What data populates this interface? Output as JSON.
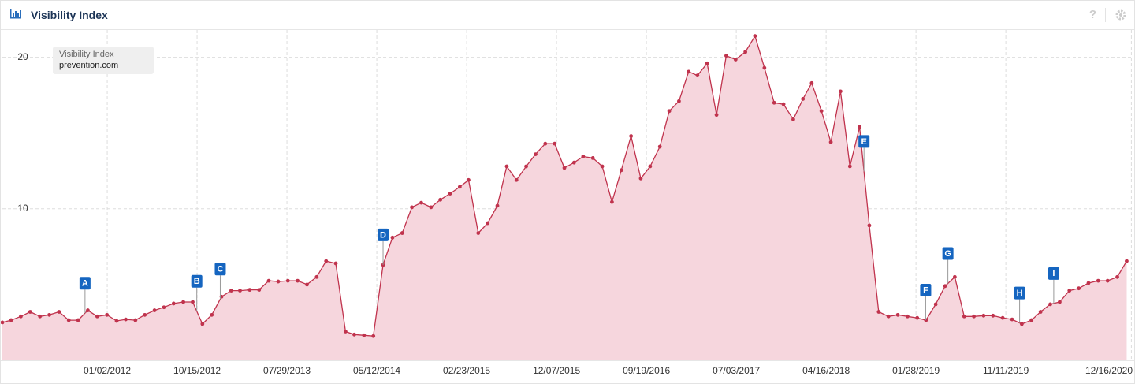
{
  "header": {
    "title": "Visibility Index"
  },
  "chart_data": {
    "type": "line",
    "legend_title": "Visibility Index",
    "series": [
      {
        "name": "prevention.com",
        "color": "#c0334d",
        "fill": "#f6d6dd",
        "x": [
          "02/01/2011",
          "03/01/2011",
          "04/01/2011",
          "05/01/2011",
          "06/01/2011",
          "07/01/2011",
          "08/01/2011",
          "09/01/2011",
          "10/01/2011",
          "11/01/2011",
          "12/01/2011",
          "01/01/2012",
          "02/01/2012",
          "03/01/2012",
          "04/01/2012",
          "05/01/2012",
          "06/01/2012",
          "07/01/2012",
          "08/01/2012",
          "09/01/2012",
          "10/01/2012",
          "11/01/2012",
          "12/01/2012",
          "01/01/2013",
          "02/01/2013",
          "03/01/2013",
          "04/01/2013",
          "05/01/2013",
          "06/01/2013",
          "07/01/2013",
          "08/01/2013",
          "09/01/2013",
          "10/01/2013",
          "11/01/2013",
          "12/01/2013",
          "01/01/2014",
          "02/01/2014",
          "03/01/2014",
          "04/01/2014",
          "05/01/2014",
          "06/01/2014",
          "07/01/2014",
          "08/01/2014",
          "09/01/2014",
          "10/01/2014",
          "11/01/2014",
          "12/01/2014",
          "01/01/2015",
          "02/01/2015",
          "03/01/2015",
          "04/01/2015",
          "05/01/2015",
          "06/01/2015",
          "07/01/2015",
          "08/01/2015",
          "09/01/2015",
          "10/01/2015",
          "11/01/2015",
          "12/01/2015",
          "01/01/2016",
          "02/01/2016",
          "03/01/2016",
          "04/01/2016",
          "05/01/2016",
          "06/01/2016",
          "07/01/2016",
          "08/01/2016",
          "09/01/2016",
          "10/01/2016",
          "11/01/2016",
          "12/01/2016",
          "01/01/2017",
          "02/01/2017",
          "03/01/2017",
          "04/01/2017",
          "05/01/2017",
          "06/01/2017",
          "07/01/2017",
          "08/01/2017",
          "09/01/2017",
          "10/01/2017",
          "11/01/2017",
          "12/01/2017",
          "01/01/2018",
          "02/01/2018",
          "03/01/2018",
          "04/01/2018",
          "05/01/2018",
          "06/01/2018",
          "07/01/2018",
          "08/01/2018",
          "09/01/2018",
          "10/01/2018",
          "11/01/2018",
          "12/01/2018",
          "01/01/2019",
          "02/01/2019",
          "03/01/2019",
          "04/01/2019",
          "05/01/2019",
          "06/01/2019",
          "07/01/2019",
          "08/01/2019",
          "09/01/2019",
          "10/01/2019",
          "11/01/2019",
          "12/01/2019",
          "01/01/2020",
          "02/01/2020",
          "03/01/2020",
          "04/01/2020",
          "05/01/2020",
          "06/01/2020",
          "07/01/2020",
          "08/01/2020",
          "09/01/2020",
          "10/01/2020",
          "11/01/2020",
          "12/01/2020"
        ],
        "values": [
          2.5,
          2.65,
          2.9,
          3.2,
          2.9,
          3.0,
          3.2,
          2.65,
          2.65,
          3.3,
          2.9,
          3.0,
          2.6,
          2.7,
          2.65,
          3.0,
          3.3,
          3.5,
          3.75,
          3.85,
          3.85,
          2.4,
          3.0,
          4.2,
          4.6,
          4.6,
          4.65,
          4.65,
          5.25,
          5.2,
          5.25,
          5.25,
          5.0,
          5.5,
          6.55,
          6.4,
          1.9,
          1.7,
          1.65,
          1.6,
          6.3,
          8.1,
          8.4,
          10.1,
          10.4,
          10.1,
          10.6,
          11.0,
          11.45,
          11.9,
          8.4,
          9.05,
          10.2,
          12.8,
          11.9,
          12.8,
          13.6,
          14.3,
          14.3,
          12.7,
          13.05,
          13.45,
          13.35,
          12.8,
          10.45,
          12.55,
          14.8,
          12.0,
          12.8,
          14.1,
          16.45,
          17.1,
          19.05,
          18.8,
          19.6,
          16.2,
          20.1,
          19.85,
          20.35,
          21.4,
          19.3,
          17.0,
          16.9,
          15.9,
          17.25,
          18.3,
          16.45,
          14.4,
          17.75,
          12.8,
          15.4,
          8.9,
          3.2,
          2.9,
          3.0,
          2.9,
          2.8,
          2.65,
          3.7,
          4.9,
          5.5,
          2.9,
          2.9,
          2.95,
          2.95,
          2.8,
          2.7,
          2.4,
          2.65,
          3.2,
          3.7,
          3.85,
          4.6,
          4.75,
          5.1,
          5.25,
          5.25,
          5.5,
          6.55
        ]
      }
    ],
    "annotations": [
      {
        "label": "A",
        "x": "10/23/2011"
      },
      {
        "label": "B",
        "x": "10/14/2012"
      },
      {
        "label": "C",
        "x": "12/28/2012"
      },
      {
        "label": "D",
        "x": "06/01/2014"
      },
      {
        "label": "E",
        "x": "08/15/2018"
      },
      {
        "label": "F",
        "x": "02/28/2019"
      },
      {
        "label": "G",
        "x": "05/10/2019"
      },
      {
        "label": "H",
        "x": "12/25/2019"
      },
      {
        "label": "I",
        "x": "04/12/2020"
      }
    ],
    "xlim": [
      "02/01/2011",
      "12/20/2020"
    ],
    "xticks": [
      "01/02/2012",
      "10/15/2012",
      "07/29/2013",
      "05/12/2014",
      "02/23/2015",
      "12/07/2015",
      "09/19/2016",
      "07/03/2017",
      "04/16/2018",
      "01/28/2019",
      "11/11/2019",
      "12/16/2020"
    ],
    "ylim": [
      0,
      21.8
    ],
    "yticks": [
      10,
      20
    ],
    "grid": true
  }
}
